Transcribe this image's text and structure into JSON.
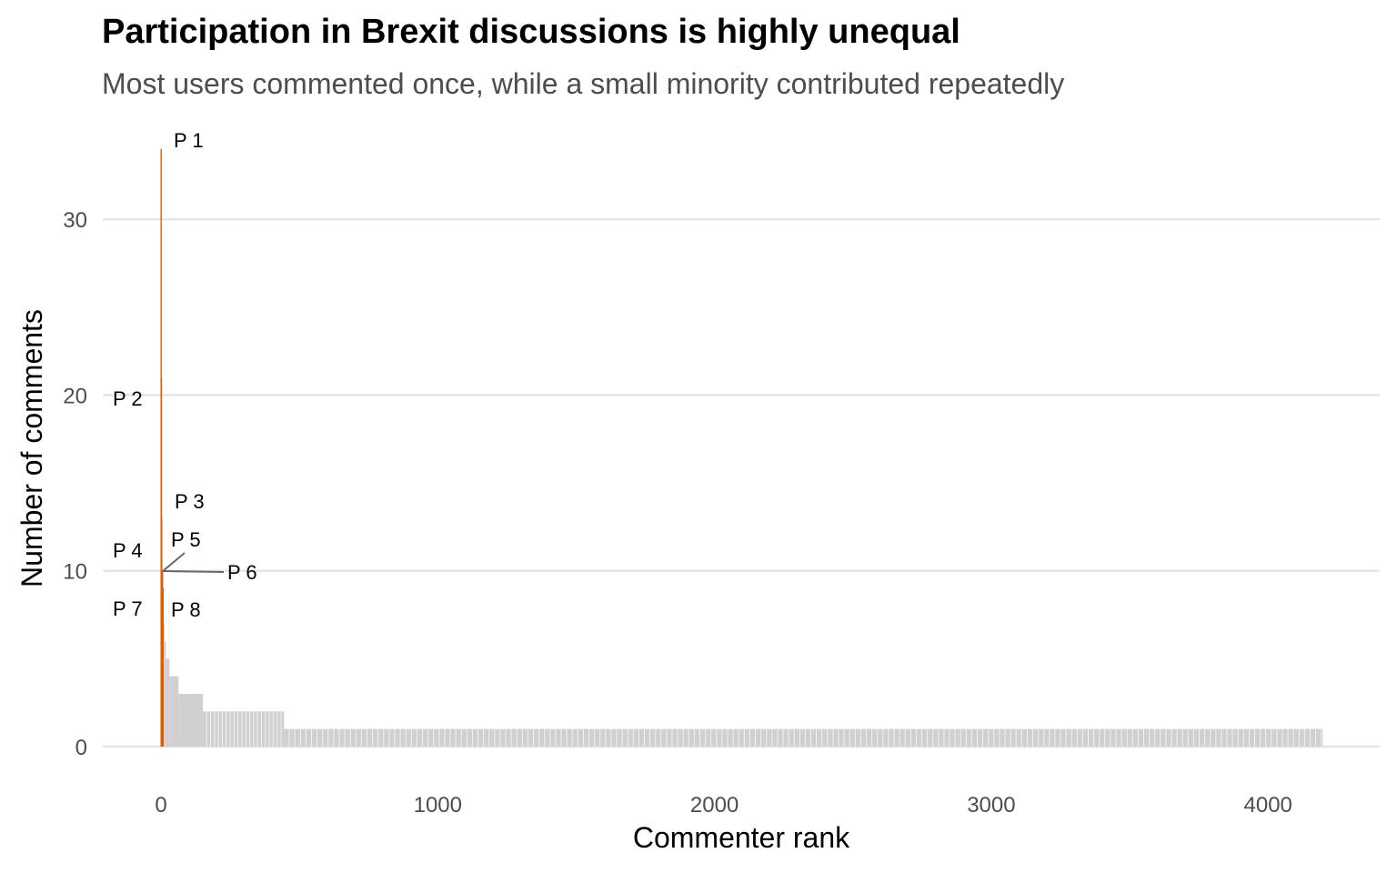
{
  "chart_data": {
    "type": "bar",
    "title": "Participation in Brexit discussions is highly unequal",
    "subtitle": "Most users commented once, while a small minority contributed repeatedly",
    "xlabel": "Commenter rank",
    "ylabel": "Number of comments",
    "xlim": [
      0,
      4200
    ],
    "ylim": [
      0,
      34
    ],
    "xticks": [
      0,
      1000,
      2000,
      3000,
      4000
    ],
    "yticks": [
      0,
      10,
      20,
      30
    ],
    "grid": "horizontal",
    "highlight_color": "#D95F02",
    "base_color": "#D0D0D0",
    "highlighted": [
      {
        "label": "P 1",
        "rank": 1,
        "value": 34
      },
      {
        "label": "P 2",
        "rank": 2,
        "value": 21
      },
      {
        "label": "P 3",
        "rank": 3,
        "value": 13
      },
      {
        "label": "P 4",
        "rank": 4,
        "value": 10
      },
      {
        "label": "P 5",
        "rank": 5,
        "value": 10
      },
      {
        "label": "P 6",
        "rank": 6,
        "value": 10
      },
      {
        "label": "P 7",
        "rank": 7,
        "value": 9
      },
      {
        "label": "P 8",
        "rank": 8,
        "value": 9
      }
    ],
    "tail": [
      {
        "value": 7,
        "from_rank": 9,
        "to_rank": 12
      },
      {
        "value": 6,
        "from_rank": 13,
        "to_rank": 17
      },
      {
        "value": 5,
        "from_rank": 18,
        "to_rank": 30
      },
      {
        "value": 4,
        "from_rank": 31,
        "to_rank": 63
      },
      {
        "value": 3,
        "from_rank": 64,
        "to_rank": 151
      },
      {
        "value": 2,
        "from_rank": 152,
        "to_rank": 444
      },
      {
        "value": 1,
        "from_rank": 445,
        "to_rank": 4197
      }
    ]
  }
}
